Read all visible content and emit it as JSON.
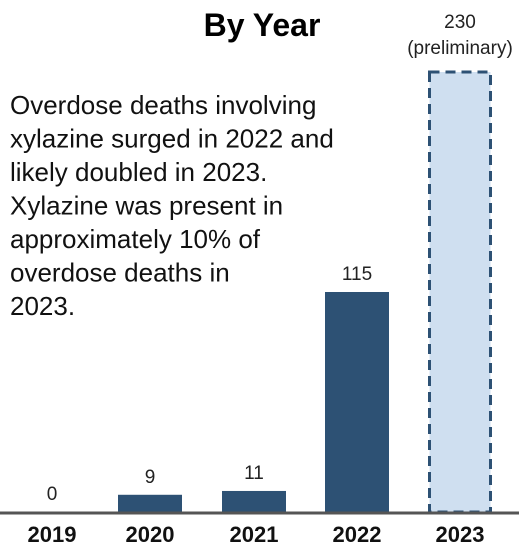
{
  "chart_data": {
    "type": "bar",
    "title": "By Year",
    "annotation_lines": [
      "Overdose deaths involving",
      "xylazine surged in 2022 and",
      "likely doubled in 2023.",
      "Xylazine was present in",
      "approximately 10% of",
      "overdose deaths in",
      "2023."
    ],
    "categories": [
      "2019",
      "2020",
      "2021",
      "2022",
      "2023"
    ],
    "values": [
      0,
      9,
      11,
      115,
      230
    ],
    "value_labels": [
      "0",
      "9",
      "11",
      "115",
      "230"
    ],
    "preliminary_label": "(preliminary)",
    "preliminary_index": 4,
    "ylim": [
      0,
      230
    ],
    "grid": false,
    "colors": {
      "bar": "#2d5174",
      "preliminary_fill": "#cfdff0",
      "preliminary_border": "#2d5174",
      "axis": "#555555"
    }
  }
}
